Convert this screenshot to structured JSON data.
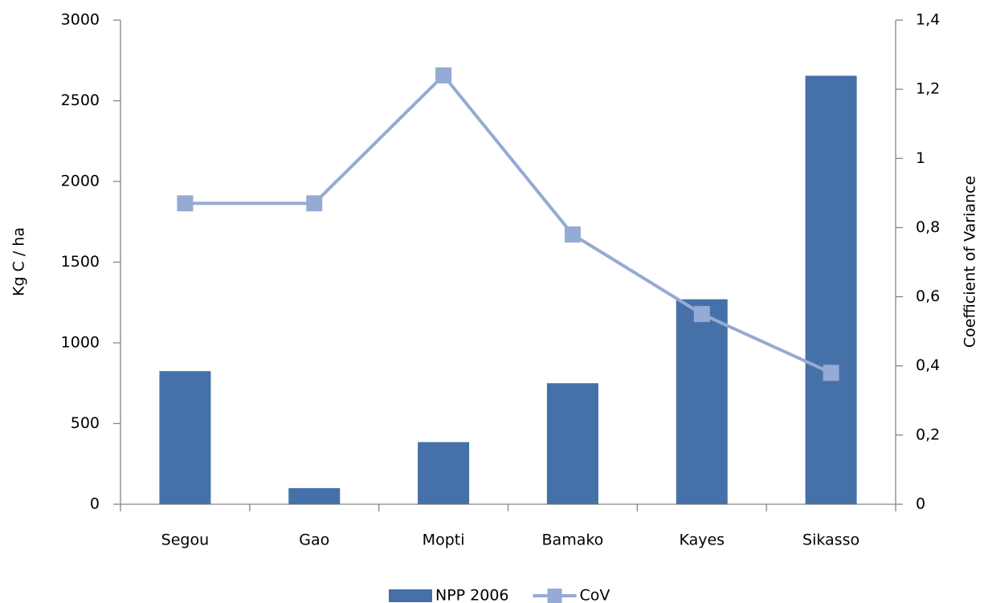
{
  "chart_data": {
    "type": "bar",
    "categories": [
      "Segou",
      "Gao",
      "Mopti",
      "Bamako",
      "Kayes",
      "Sikasso"
    ],
    "series": [
      {
        "name": "NPP 2006",
        "type": "bar",
        "color": "#4571a8",
        "values": [
          825,
          100,
          385,
          750,
          1270,
          2655
        ]
      },
      {
        "name": "CoV",
        "type": "line",
        "axis": "y2",
        "color": "#95aad4",
        "values": [
          0.87,
          0.87,
          1.24,
          0.78,
          0.55,
          0.38
        ]
      }
    ],
    "ylabel": "Kg C / ha",
    "y2label": "Coefficient of Variance",
    "ylim": [
      0,
      3000
    ],
    "yticks": [
      0,
      500,
      1000,
      1500,
      2000,
      2500,
      3000
    ],
    "y2lim": [
      0,
      1.4
    ],
    "y2ticks": [
      0,
      {
        "value": 0.2,
        "label": "0,2"
      },
      {
        "value": 0.4,
        "label": "0,4"
      },
      {
        "value": 0.6,
        "label": "0,6"
      },
      {
        "value": 0.8,
        "label": "0,8"
      },
      1,
      {
        "value": 1.2,
        "label": "1,2"
      },
      {
        "value": 1.4,
        "label": "1,4"
      }
    ],
    "grid": false,
    "legend": "bottom"
  }
}
